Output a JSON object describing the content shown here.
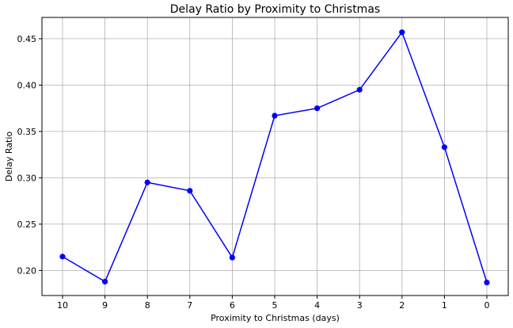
{
  "chart_data": {
    "type": "line",
    "title": "Delay Ratio by Proximity to Christmas",
    "xlabel": "Proximity to Christmas (days)",
    "ylabel": "Delay Ratio",
    "x": [
      10,
      9,
      8,
      7,
      6,
      5,
      4,
      3,
      2,
      1,
      0
    ],
    "x_axis_inverted": true,
    "series": [
      {
        "values": [
          0.215,
          0.188,
          0.295,
          0.286,
          0.214,
          0.367,
          0.375,
          0.395,
          0.457,
          0.333,
          0.187
        ],
        "color": "#0000ff",
        "marker": "circle"
      }
    ],
    "ylim": [
      0.173,
      0.473
    ],
    "yticks": [
      "0.20",
      "0.25",
      "0.30",
      "0.35",
      "0.40",
      "0.45"
    ],
    "xticks": [
      "10",
      "9",
      "8",
      "7",
      "6",
      "5",
      "4",
      "3",
      "2",
      "1",
      "0"
    ],
    "grid": true,
    "legend": "none"
  }
}
